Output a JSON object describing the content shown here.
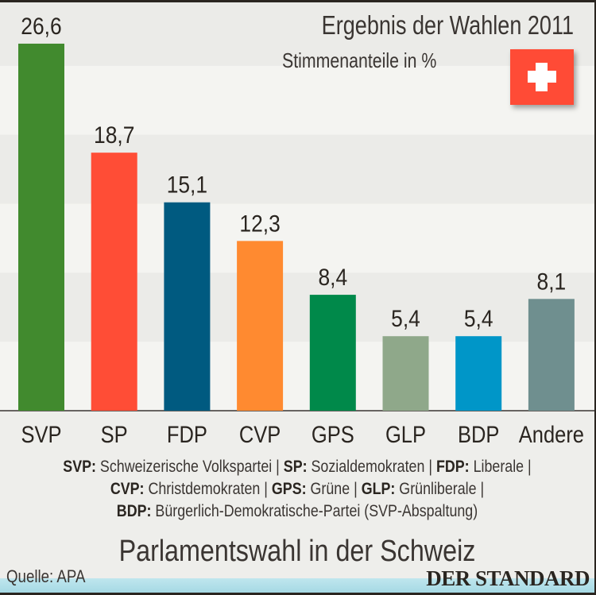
{
  "chart_data": {
    "type": "bar",
    "title": "Ergebnis der Wahlen 2011",
    "subtitle": "Stimmenanteile in %",
    "categories": [
      "SVP",
      "SP",
      "FDP",
      "CVP",
      "GPS",
      "GLP",
      "BDP",
      "Andere"
    ],
    "values": [
      26.6,
      18.7,
      15.1,
      12.3,
      8.4,
      5.4,
      5.4,
      8.1
    ],
    "labels": [
      "26,6",
      "18,7",
      "15,1",
      "12,3",
      "8,4",
      "5,4",
      "5,4",
      "8,1"
    ],
    "colors": [
      "#418a2e",
      "#ff4d36",
      "#005a80",
      "#ff8a30",
      "#00894a",
      "#8fa88a",
      "#0096c8",
      "#6f8f8f"
    ],
    "ylim": [
      0,
      30
    ],
    "grid": "alternating horizontal bands every 5",
    "xlabel": "",
    "ylabel": ""
  },
  "legend": {
    "lines": [
      [
        {
          "abbr": "SVP:",
          "name": "Schweizerische Volkspartei |"
        },
        {
          "abbr": "SP:",
          "name": "Sozialdemokraten |"
        },
        {
          "abbr": "FDP:",
          "name": "Liberale |"
        }
      ],
      [
        {
          "abbr": "CVP:",
          "name": "Christdemokraten |"
        },
        {
          "abbr": "GPS:",
          "name": "Grüne |"
        },
        {
          "abbr": "GLP:",
          "name": "Grünliberale |"
        }
      ],
      [
        {
          "abbr": "BDP:",
          "name": "Bürgerlich-Demokratische-Partei (SVP-Abspaltung)"
        }
      ]
    ]
  },
  "footer": {
    "title": "Parlamentswahl in der Schweiz",
    "source": "Quelle: APA",
    "logo": "DER STANDARD"
  },
  "flag": {
    "name": "swiss-flag-icon",
    "color": "#ff4b36"
  }
}
